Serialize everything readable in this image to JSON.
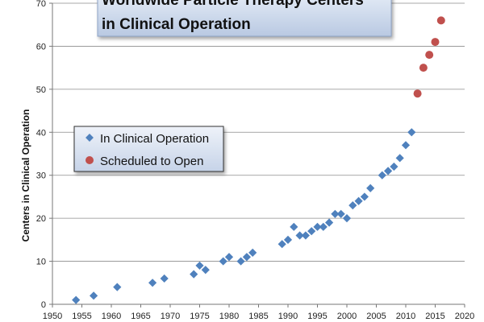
{
  "chart_data": {
    "type": "scatter",
    "title_lines": [
      "Worldwide Particle Therapy Centers",
      "in Clinical Operation"
    ],
    "xlabel": "",
    "ylabel": "Centers  in Clinical Operation",
    "xlim": [
      1950,
      2020
    ],
    "ylim": [
      0,
      70
    ],
    "x_ticks": [
      1950,
      1955,
      1960,
      1965,
      1970,
      1975,
      1980,
      1985,
      1990,
      1995,
      2000,
      2005,
      2010,
      2015,
      2020
    ],
    "y_ticks": [
      0,
      10,
      20,
      30,
      40,
      50,
      60,
      70
    ],
    "grid": "horizontal",
    "legend_position": "center-left",
    "series": [
      {
        "name": "In Clinical Operation",
        "marker": "diamond",
        "color": "#4f81bd",
        "points": [
          [
            1954,
            1
          ],
          [
            1957,
            2
          ],
          [
            1961,
            4
          ],
          [
            1967,
            5
          ],
          [
            1969,
            6
          ],
          [
            1974,
            7
          ],
          [
            1975,
            9
          ],
          [
            1976,
            8
          ],
          [
            1979,
            10
          ],
          [
            1980,
            11
          ],
          [
            1982,
            10
          ],
          [
            1983,
            11
          ],
          [
            1984,
            12
          ],
          [
            1989,
            14
          ],
          [
            1990,
            15
          ],
          [
            1991,
            18
          ],
          [
            1992,
            16
          ],
          [
            1993,
            16
          ],
          [
            1994,
            17
          ],
          [
            1995,
            18
          ],
          [
            1996,
            18
          ],
          [
            1997,
            19
          ],
          [
            1998,
            21
          ],
          [
            1999,
            21
          ],
          [
            2000,
            20
          ],
          [
            2001,
            23
          ],
          [
            2002,
            24
          ],
          [
            2003,
            25
          ],
          [
            2004,
            27
          ],
          [
            2006,
            30
          ],
          [
            2007,
            31
          ],
          [
            2008,
            32
          ],
          [
            2009,
            34
          ],
          [
            2010,
            37
          ],
          [
            2011,
            40
          ]
        ]
      },
      {
        "name": "Scheduled to Open",
        "marker": "circle",
        "color": "#c0504d",
        "points": [
          [
            2012,
            49
          ],
          [
            2013,
            55
          ],
          [
            2014,
            58
          ],
          [
            2015,
            61
          ],
          [
            2016,
            66
          ]
        ]
      }
    ]
  }
}
